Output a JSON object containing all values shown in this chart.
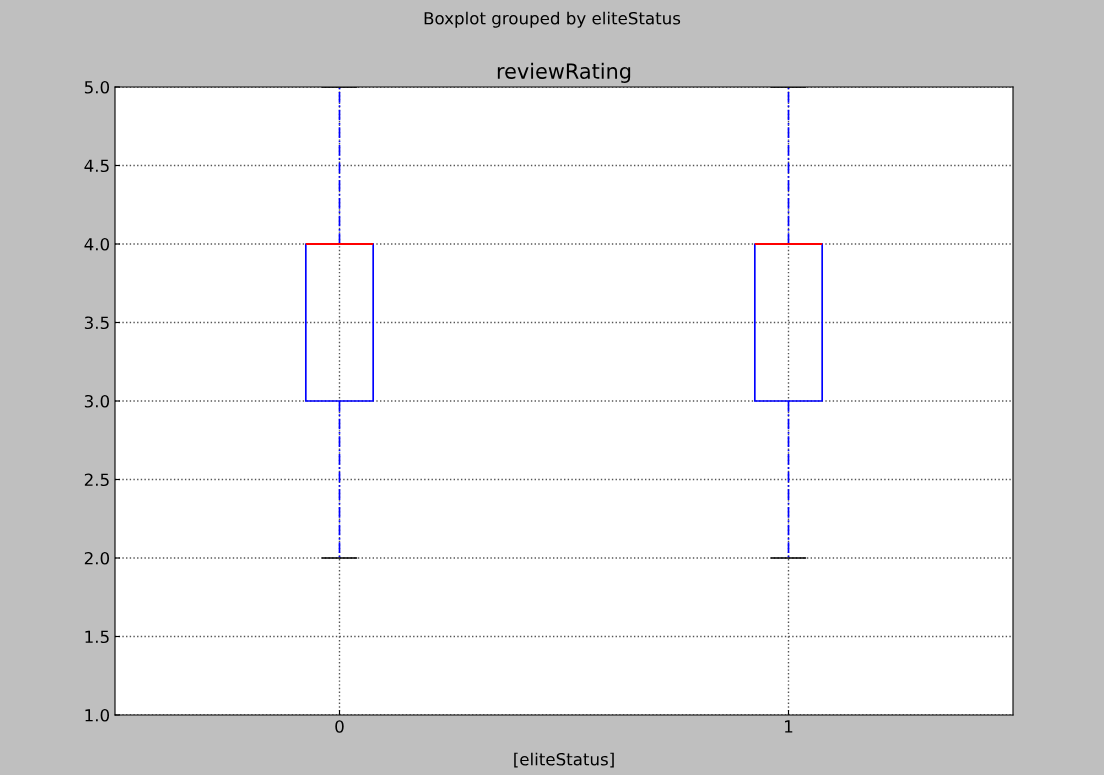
{
  "chart_data": {
    "type": "box",
    "title": "reviewRating",
    "subtitle": "Boxplot grouped by eliteStatus",
    "xlabel": "[eliteStatus]",
    "categories": [
      "0",
      "1"
    ],
    "color": "#0000ff",
    "boxes": [
      {
        "low": 2,
        "q1": 3,
        "median": 4,
        "q3": 4,
        "high": 5
      },
      {
        "low": 2,
        "q1": 3,
        "median": 4,
        "q3": 4,
        "high": 5
      }
    ],
    "ylim": [
      1.0,
      5.0
    ],
    "yticks": [
      {
        "value": 1,
        "label": "1.0"
      },
      {
        "value": 1.5,
        "label": "1.5"
      },
      {
        "value": 2,
        "label": "2.0"
      },
      {
        "value": 2.5,
        "label": "2.5"
      },
      {
        "value": 3,
        "label": "3.0"
      },
      {
        "value": 3.5,
        "label": "3.5"
      },
      {
        "value": 4,
        "label": "4.0"
      },
      {
        "value": 4.5,
        "label": "4.5"
      },
      {
        "value": 5,
        "label": "5.0"
      }
    ],
    "grid": true
  }
}
